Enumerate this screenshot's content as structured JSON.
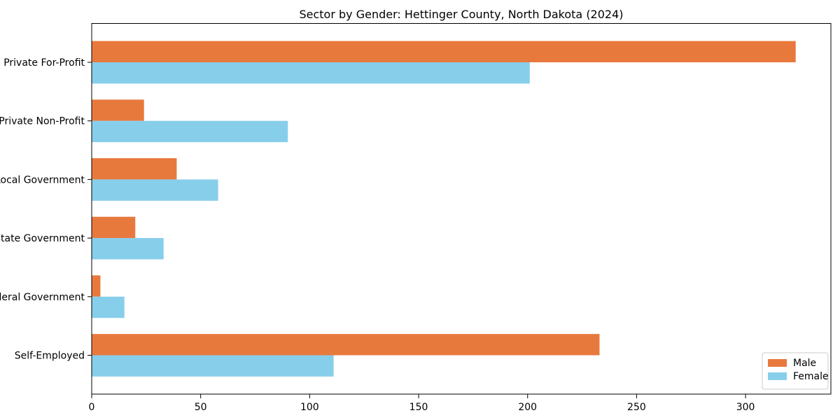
{
  "chart_data": {
    "type": "bar",
    "orientation": "horizontal",
    "title": "Sector by Gender: Hettinger County, North Dakota (2024)",
    "categories": [
      "Private For-Profit",
      "Private Non-Profit",
      "Local Government",
      "State Government",
      "Federal Government",
      "Self-Employed"
    ],
    "series": [
      {
        "name": "Male",
        "color": "#e8793d",
        "values": [
          323,
          24,
          39,
          20,
          4,
          233
        ]
      },
      {
        "name": "Female",
        "color": "#87ceeb",
        "values": [
          201,
          90,
          58,
          33,
          15,
          111
        ]
      }
    ],
    "xlabel": "",
    "ylabel": "",
    "xlim": [
      0,
      339.15
    ],
    "xticks": [
      0,
      50,
      100,
      150,
      200,
      250,
      300
    ],
    "grid": false,
    "legend_position": "lower right"
  },
  "colors": {
    "axis": "#000000",
    "legend_border": "#cccccc",
    "background": "#ffffff",
    "text": "#000000"
  }
}
